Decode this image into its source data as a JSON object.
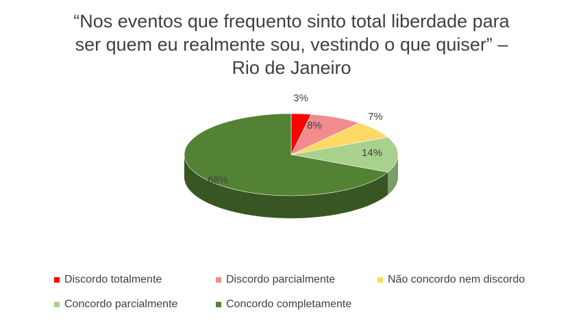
{
  "chart_data": {
    "type": "pie",
    "title_lines": [
      "“Nos eventos que frequento sinto total liberdade para",
      "ser quem eu realmente sou, vestindo o que quiser” –",
      "Rio de Janeiro"
    ],
    "categories": [
      "Discordo totalmente",
      "Discordo parcialmente",
      "Não concordo nem discordo",
      "Concordo parcialmente",
      "Concordo completamente"
    ],
    "values": [
      3,
      8,
      7,
      14,
      68
    ],
    "labels": [
      "3%",
      "8%",
      "7%",
      "14%",
      "68%"
    ],
    "colors": [
      "#ff0000",
      "#f28b8b",
      "#ffd966",
      "#a9d18e",
      "#548235"
    ],
    "side_colors": [
      "#b30000",
      "#b86565",
      "#bf9f40",
      "#7a9e64",
      "#375623"
    ],
    "legend_position": "bottom",
    "style": "3d"
  }
}
